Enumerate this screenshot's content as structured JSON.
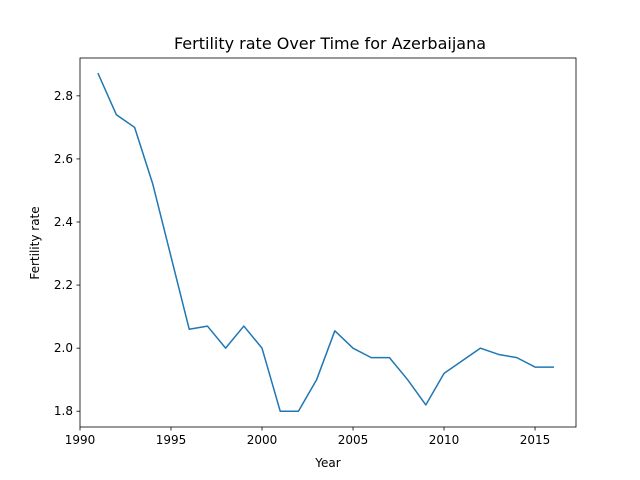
{
  "colors": {
    "background": "#ffffff",
    "line": "#1f77b4",
    "axes": "#000000"
  },
  "chart_data": {
    "type": "line",
    "title": "Fertility rate Over Time for Azerbaijana",
    "xlabel": "Year",
    "ylabel": "Fertility rate",
    "xlim": [
      1990,
      2017.25
    ],
    "ylim": [
      1.75,
      2.92
    ],
    "xticks": [
      1990,
      1995,
      2000,
      2005,
      2010,
      2015
    ],
    "yticks": [
      1.8,
      2.0,
      2.2,
      2.4,
      2.6,
      2.8
    ],
    "xtick_labels": [
      "1990",
      "1995",
      "2000",
      "2005",
      "2010",
      "2015"
    ],
    "ytick_labels": [
      "1.8",
      "2.0",
      "2.2",
      "2.4",
      "2.6",
      "2.8"
    ],
    "grid": false,
    "legend": null,
    "series": [
      {
        "x": [
          1991,
          1992,
          1993,
          1994,
          1995,
          1996,
          1997,
          1998,
          1999,
          2000,
          2001,
          2002,
          2003,
          2004,
          2005,
          2006,
          2007,
          2008,
          2009,
          2010,
          2011,
          2012,
          2013,
          2014,
          2015,
          2016
        ],
        "y": [
          2.87,
          2.74,
          2.7,
          2.52,
          2.29,
          2.06,
          2.07,
          2.0,
          2.07,
          2.0,
          1.8,
          1.8,
          1.9,
          2.055,
          2.0,
          1.97,
          1.97,
          1.9,
          1.82,
          1.92,
          1.96,
          2.0,
          1.98,
          1.97,
          1.94,
          1.94
        ]
      }
    ]
  }
}
